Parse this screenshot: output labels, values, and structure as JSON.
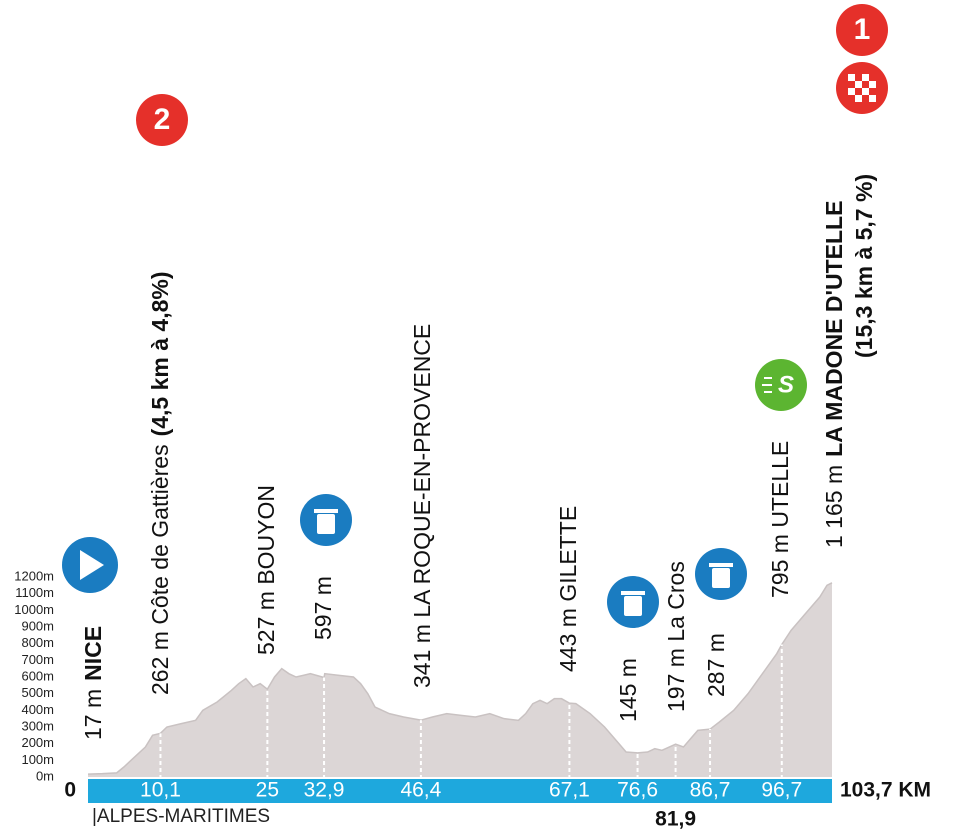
{
  "chart_data": {
    "type": "area",
    "color": "#dcd6d6",
    "line_color": "#c9c2c2",
    "bar_color": "#1ea8dd",
    "x": [
      0,
      2,
      4,
      5,
      6,
      8,
      9,
      10.1,
      11,
      13,
      15,
      16,
      18,
      20,
      21,
      22,
      23,
      24,
      25,
      26,
      27,
      28,
      29,
      30,
      31,
      32.9,
      33,
      35,
      37,
      38,
      39,
      40,
      42,
      44,
      46.4,
      48,
      50,
      52,
      54,
      56,
      58,
      60,
      61,
      62,
      63,
      64,
      65,
      66,
      67.1,
      68,
      70,
      72,
      74,
      75,
      76.6,
      78,
      79,
      80,
      81.9,
      83,
      84,
      85,
      86.7,
      88,
      90,
      92,
      94,
      96,
      96.7,
      98,
      100,
      102,
      103,
      103.7
    ],
    "values": [
      17,
      20,
      25,
      60,
      100,
      180,
      250,
      262,
      300,
      320,
      340,
      400,
      450,
      520,
      560,
      590,
      540,
      560,
      527,
      600,
      650,
      620,
      600,
      610,
      620,
      597,
      620,
      610,
      600,
      560,
      500,
      420,
      380,
      360,
      341,
      360,
      380,
      370,
      360,
      380,
      350,
      340,
      380,
      440,
      460,
      440,
      470,
      470,
      443,
      440,
      380,
      300,
      200,
      150,
      145,
      150,
      170,
      160,
      197,
      180,
      230,
      280,
      287,
      330,
      400,
      500,
      620,
      740,
      795,
      880,
      980,
      1080,
      1150,
      1165
    ],
    "xlim": [
      0,
      103.7
    ],
    "ylim": [
      0,
      1200
    ],
    "yticks": [
      {
        "value": 0,
        "label": "0m"
      },
      {
        "value": 100,
        "label": "100m"
      },
      {
        "value": 200,
        "label": "200m"
      },
      {
        "value": 300,
        "label": "300m"
      },
      {
        "value": 400,
        "label": "400m"
      },
      {
        "value": 500,
        "label": "500m"
      },
      {
        "value": 600,
        "label": "600m"
      },
      {
        "value": 700,
        "label": "700m"
      },
      {
        "value": 800,
        "label": "800m"
      },
      {
        "value": 900,
        "label": "900m"
      },
      {
        "value": 1000,
        "label": "1000m"
      },
      {
        "value": 1100,
        "label": "1100m"
      },
      {
        "value": 1200,
        "label": "1200m"
      }
    ],
    "xticks": [
      0,
      {
        "value": 10.1,
        "label": "10,1"
      },
      25,
      {
        "value": 32.9,
        "label": "32,9"
      },
      {
        "value": 46.4,
        "label": "46,4"
      },
      {
        "value": 67.1,
        "label": "67,1"
      },
      {
        "value": 76.6,
        "label": "76,6"
      },
      {
        "value": 86.7,
        "label": "86,7"
      },
      {
        "value": 96.7,
        "label": "96,7"
      },
      {
        "value": 103.7,
        "label": "103,7 KM"
      }
    ],
    "xticks_below": [
      {
        "value": 81.9,
        "label": "81,9"
      }
    ],
    "region": "|ALPES-MARITIMES",
    "annotations": [
      {
        "text": "17 m",
        "bold": "NICE"
      },
      {
        "text": "262 m Côte de Gattières",
        "bold": "(4,5 km à 4,8%)"
      },
      {
        "text": "527 m BOUYON"
      },
      {
        "text": "597 m"
      },
      {
        "text": "341 m LA ROQUE-EN-PROVENCE"
      },
      {
        "text": "443 m GILETTE"
      },
      {
        "text": "145 m"
      },
      {
        "text": "197 m La Cros"
      },
      {
        "text": "287 m"
      },
      {
        "text": "795 m UTELLE"
      },
      {
        "text": "1 165 m",
        "bold": "LA MADONE D'UTELLE",
        "line2": "(15,3 km à 5,7 %)"
      }
    ],
    "markers": [
      "2",
      "1",
      "S"
    ]
  }
}
